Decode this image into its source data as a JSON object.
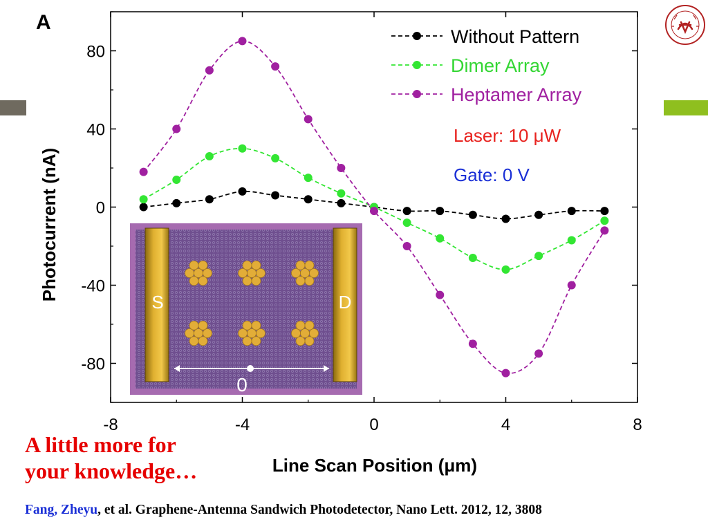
{
  "chart_data": {
    "type": "line",
    "panel_label": "A",
    "xlabel": "Line Scan Position (μm)",
    "ylabel": "Photocurrent (nA)",
    "xlim": [
      -8,
      8
    ],
    "ylim": [
      -100,
      100
    ],
    "xticks": [
      -8,
      -4,
      0,
      4,
      8
    ],
    "yticks": [
      -80,
      -40,
      0,
      40,
      80
    ],
    "x": [
      -7,
      -6,
      -5,
      -4,
      -3,
      -2,
      -1,
      0,
      1,
      2,
      3,
      4,
      5,
      6,
      7
    ],
    "series": [
      {
        "name": "Without Pattern",
        "color": "#000000",
        "values": [
          0,
          2,
          4,
          8,
          6,
          4,
          2,
          0,
          -2,
          -2,
          -4,
          -6,
          -4,
          -2,
          -2
        ]
      },
      {
        "name": "Dimer Array",
        "color": "#33e633",
        "values": [
          4,
          14,
          26,
          30,
          25,
          15,
          7,
          0,
          -8,
          -16,
          -26,
          -32,
          -25,
          -17,
          -7
        ]
      },
      {
        "name": "Heptamer Array",
        "color": "#a020a0",
        "values": [
          18,
          40,
          70,
          85,
          72,
          45,
          20,
          -2,
          -20,
          -45,
          -70,
          -85,
          -75,
          -40,
          -12
        ]
      }
    ],
    "legend_position": "top-right",
    "annotations": [
      {
        "text": "Laser: 10 μW",
        "color": "#e8231f"
      },
      {
        "text": "Gate: 0 V",
        "color": "#1a2fd6"
      }
    ],
    "inset": {
      "left_label": "S",
      "right_label": "D",
      "center_label": "0"
    }
  },
  "knowledge_text": [
    "A little more for",
    "your knowledge…"
  ],
  "citation": {
    "authors": "Fang, Zheyu",
    "rest": ", et al. Graphene-Antenna Sandwich Photodetector, Nano Lett. 2012, 12, 3808"
  },
  "colors": {
    "accent_red": "#e60000",
    "deco_left": "#6f6a5f",
    "deco_right": "#8fbf1f"
  }
}
